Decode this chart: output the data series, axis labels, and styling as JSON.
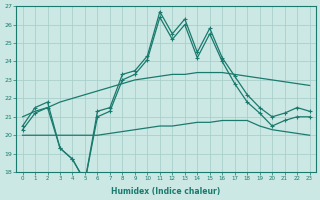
{
  "xlabel": "Humidex (Indice chaleur)",
  "x": [
    0,
    1,
    2,
    3,
    4,
    5,
    6,
    7,
    8,
    9,
    10,
    11,
    12,
    13,
    14,
    15,
    16,
    17,
    18,
    19,
    20,
    21,
    22,
    23
  ],
  "color": "#1a7a6e",
  "bg_color": "#cce8e4",
  "grid_color": "#aacfcb",
  "ylim": [
    18,
    27
  ],
  "yticks": [
    18,
    19,
    20,
    21,
    22,
    23,
    24,
    25,
    26,
    27
  ],
  "jagged_upper": [
    20.5,
    21.5,
    21.8,
    19.3,
    18.7,
    17.5,
    21.3,
    21.5,
    23.3,
    23.5,
    24.3,
    26.7,
    25.5,
    26.3,
    24.5,
    25.8,
    24.2,
    23.2,
    22.2,
    21.5,
    21.0,
    21.2,
    21.5,
    21.3
  ],
  "jagged_lower": [
    20.3,
    21.2,
    21.5,
    19.3,
    18.7,
    17.5,
    21.0,
    21.3,
    23.0,
    23.3,
    24.1,
    26.4,
    25.2,
    26.0,
    24.2,
    25.5,
    24.0,
    22.8,
    21.8,
    21.2,
    20.5,
    20.8,
    21.0,
    21.0
  ],
  "trend_upper": [
    21.0,
    21.3,
    21.5,
    21.8,
    22.0,
    22.2,
    22.4,
    22.6,
    22.8,
    23.0,
    23.1,
    23.2,
    23.3,
    23.3,
    23.4,
    23.4,
    23.4,
    23.3,
    23.2,
    23.1,
    23.0,
    22.9,
    22.8,
    22.7
  ],
  "trend_lower": [
    20.0,
    20.0,
    20.0,
    20.0,
    20.0,
    20.0,
    20.0,
    20.1,
    20.2,
    20.3,
    20.4,
    20.5,
    20.5,
    20.6,
    20.7,
    20.7,
    20.8,
    20.8,
    20.8,
    20.5,
    20.3,
    20.2,
    20.1,
    20.0
  ]
}
